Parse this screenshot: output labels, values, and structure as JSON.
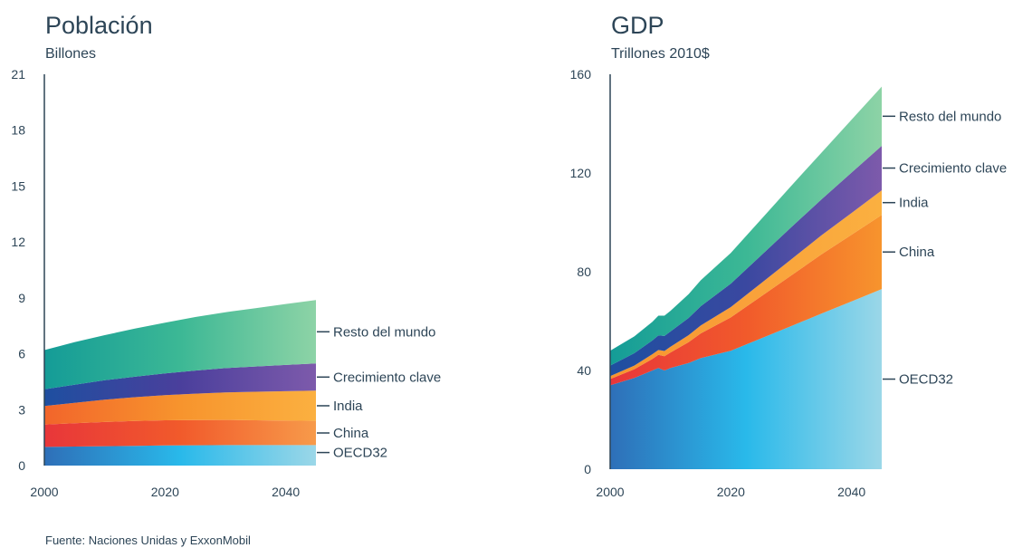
{
  "source": "Fuente: Naciones Unidas y ExxonMobil",
  "chart_data": [
    {
      "type": "area",
      "stacked": true,
      "title": "Población",
      "ylabel": "Billones",
      "x": [
        2000,
        2005,
        2010,
        2015,
        2020,
        2025,
        2030,
        2035,
        2040,
        2045
      ],
      "xticks": [
        2000,
        2020,
        2040
      ],
      "yticks": [
        0,
        3,
        6,
        9,
        12,
        15,
        18,
        21
      ],
      "ylim": [
        0,
        21
      ],
      "xlim": [
        2000,
        2045
      ],
      "legend_placement": "right",
      "series": [
        {
          "name": "OECD32",
          "values": [
            1.0,
            1.02,
            1.04,
            1.06,
            1.08,
            1.09,
            1.1,
            1.1,
            1.1,
            1.1
          ],
          "colors": [
            "#2e6fb8",
            "#29b9ea",
            "#9bd7e8"
          ]
        },
        {
          "name": "China",
          "values": [
            1.2,
            1.25,
            1.3,
            1.33,
            1.35,
            1.35,
            1.35,
            1.33,
            1.31,
            1.3
          ],
          "colors": [
            "#e8363a",
            "#f15a2b",
            "#f79a4a"
          ]
        },
        {
          "name": "India",
          "values": [
            1.0,
            1.1,
            1.2,
            1.28,
            1.35,
            1.42,
            1.48,
            1.53,
            1.58,
            1.62
          ],
          "colors": [
            "#f2652b",
            "#f7942d",
            "#fbb040"
          ]
        },
        {
          "name": "Crecimiento clave",
          "values": [
            0.9,
            0.97,
            1.04,
            1.1,
            1.17,
            1.24,
            1.3,
            1.36,
            1.41,
            1.46
          ],
          "colors": [
            "#1e4fa0",
            "#4a3f9c",
            "#7d5aab"
          ]
        },
        {
          "name": "Resto del mundo",
          "values": [
            2.1,
            2.28,
            2.42,
            2.58,
            2.72,
            2.87,
            3.0,
            3.13,
            3.27,
            3.4
          ],
          "colors": [
            "#149c97",
            "#3cb895",
            "#8dd3a6"
          ]
        }
      ]
    },
    {
      "type": "area",
      "stacked": true,
      "title": "GDP",
      "ylabel": "Trillones 2010$",
      "x": [
        2000,
        2004,
        2007,
        2008,
        2009,
        2010,
        2013,
        2015,
        2020,
        2025,
        2030,
        2035,
        2040,
        2045
      ],
      "xticks": [
        2000,
        2020,
        2040
      ],
      "yticks": [
        0,
        40,
        80,
        120,
        160
      ],
      "ylim": [
        0,
        160
      ],
      "xlim": [
        2000,
        2045
      ],
      "legend_placement": "right",
      "series": [
        {
          "name": "OECD32",
          "values": [
            34,
            37,
            40,
            41,
            40,
            41,
            43,
            45,
            48,
            53,
            58,
            63,
            68,
            73
          ],
          "colors": [
            "#2e6fb8",
            "#29b9ea",
            "#9bd7e8"
          ]
        },
        {
          "name": "China",
          "values": [
            2.5,
            3.5,
            4.7,
            5.3,
            5.8,
            6.3,
            8.5,
            10,
            13.5,
            17,
            20.5,
            24,
            27,
            30
          ],
          "colors": [
            "#e8363a",
            "#f15a2b",
            "#f7942d"
          ]
        },
        {
          "name": "India",
          "values": [
            1.2,
            1.5,
            1.9,
            2.0,
            2.1,
            2.3,
            2.8,
            3.2,
            4.2,
            5.3,
            6.5,
            7.7,
            8.8,
            10
          ],
          "colors": [
            "#f7942d",
            "#f9a13a",
            "#fbb040"
          ]
        },
        {
          "name": "Crecimiento clave",
          "values": [
            4.3,
            5.0,
            5.6,
            5.9,
            6.1,
            6.2,
            7.0,
            7.8,
            9.5,
            11.3,
            13,
            14.6,
            16.4,
            18
          ],
          "colors": [
            "#1e4fa0",
            "#3a48a0",
            "#7d5aab"
          ]
        },
        {
          "name": "Resto del mundo",
          "values": [
            6,
            6.8,
            7.5,
            8,
            8.2,
            8.4,
            9.6,
            10.5,
            12.4,
            14.6,
            16.8,
            18.9,
            21.4,
            24
          ],
          "colors": [
            "#149c97",
            "#3cb895",
            "#8dd3a6"
          ]
        }
      ]
    }
  ]
}
